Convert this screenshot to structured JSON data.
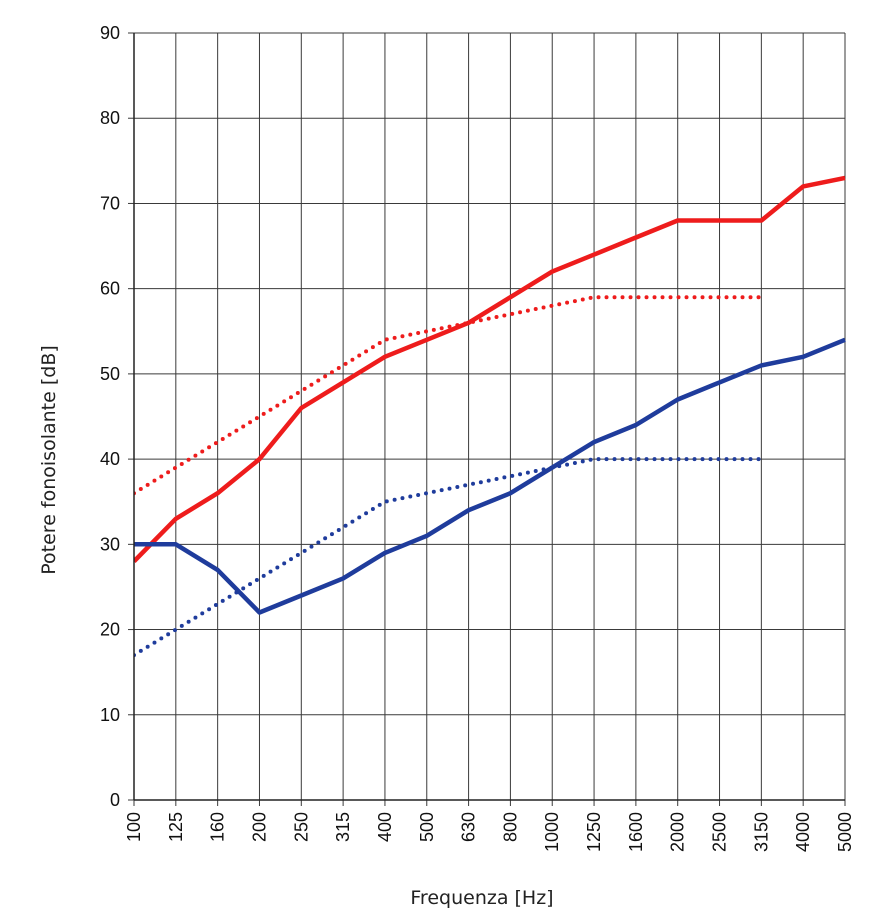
{
  "chart_data": {
    "type": "line",
    "title": "",
    "xlabel": "Frequenza [Hz]",
    "ylabel": "Potere fonoisolante [dB]",
    "categories": [
      "100",
      "125",
      "160",
      "200",
      "250",
      "315",
      "400",
      "500",
      "630",
      "800",
      "1000",
      "1250",
      "1600",
      "2000",
      "2500",
      "3150",
      "4000",
      "5000"
    ],
    "ylim": [
      0,
      90
    ],
    "yticks": [
      0,
      10,
      20,
      30,
      40,
      50,
      60,
      70,
      80,
      90
    ],
    "grid": true,
    "series": [
      {
        "style": "solid",
        "color": "#ee1c1c",
        "values": [
          28,
          33,
          36,
          40,
          46,
          49,
          52,
          54,
          56,
          59,
          62,
          64,
          66,
          68,
          68,
          68,
          72,
          73
        ]
      },
      {
        "style": "dotted",
        "color": "#ee1c1c",
        "values": [
          36,
          39,
          42,
          45,
          48,
          51,
          54,
          55,
          56,
          57,
          58,
          59,
          59,
          59,
          59,
          59,
          null,
          null
        ]
      },
      {
        "style": "solid",
        "color": "#1f3c9c",
        "values": [
          30,
          30,
          27,
          22,
          24,
          26,
          29,
          31,
          34,
          36,
          39,
          42,
          44,
          47,
          49,
          51,
          52,
          54
        ]
      },
      {
        "style": "dotted",
        "color": "#1f3c9c",
        "values": [
          17,
          20,
          23,
          26,
          29,
          32,
          35,
          36,
          37,
          38,
          39,
          40,
          40,
          40,
          40,
          40,
          null,
          null
        ]
      }
    ]
  }
}
